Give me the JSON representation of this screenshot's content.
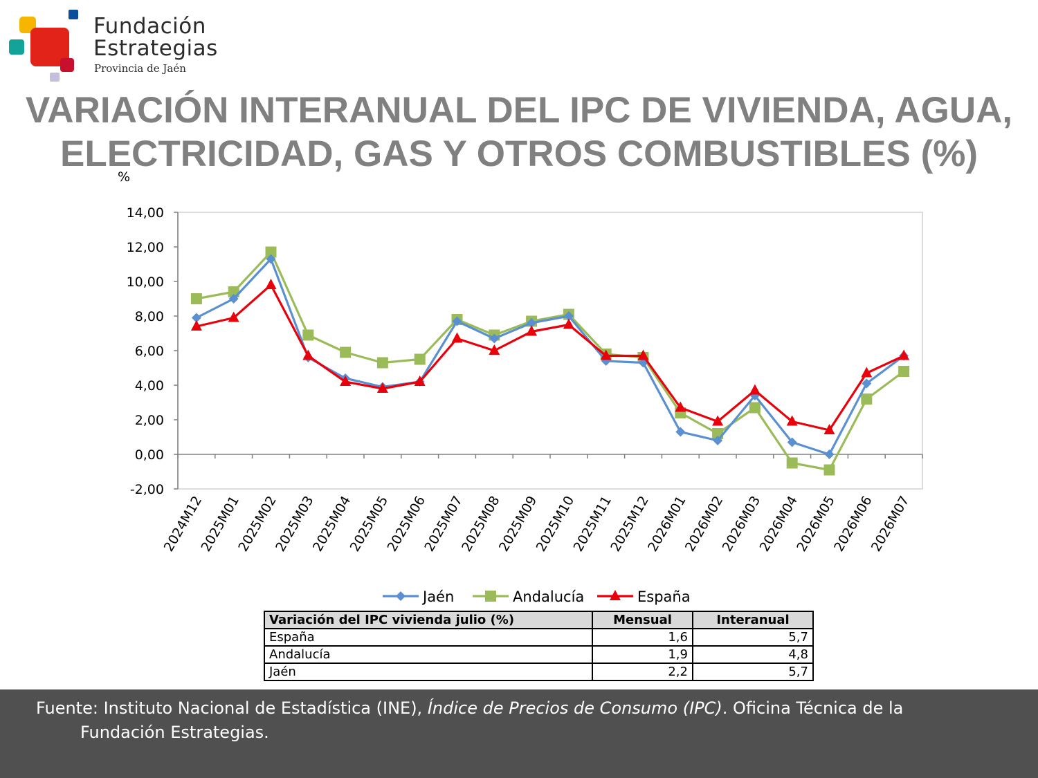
{
  "logo": {
    "line1": "Fundación",
    "line2": "Estrategias",
    "line3": "Provincia de Jaén"
  },
  "title": {
    "line1": "VARIACIÓN INTERANUAL DEL IPC DE VIVIENDA, AGUA,",
    "line2": "ELECTRICIDAD, GAS Y OTROS COMBUSTIBLES (%)"
  },
  "colors": {
    "jaen": "#5a8fd2",
    "andalucia": "#9bbb59",
    "espana": "#e8000b",
    "axis": "#808080",
    "footer_bg": "#505050"
  },
  "chart_data": {
    "type": "line",
    "ylabel": "%",
    "ylim": [
      -2,
      14
    ],
    "yticks": [
      "14,00",
      "12,00",
      "10,00",
      "8,00",
      "6,00",
      "4,00",
      "2,00",
      "0,00",
      "-2,00"
    ],
    "grid": false,
    "legend_position": "bottom",
    "categories": [
      "2024M12",
      "2025M01",
      "2025M02",
      "2025M03",
      "2025M04",
      "2025M05",
      "2025M06",
      "2025M07",
      "2025M08",
      "2025M09",
      "2025M10",
      "2025M11",
      "2025M12",
      "2026M01",
      "2026M02",
      "2026M03",
      "2026M04",
      "2026M05",
      "2026M06",
      "2026M07"
    ],
    "series": [
      {
        "name": "Jaén",
        "marker": "diamond",
        "values": [
          7.9,
          9.0,
          11.3,
          5.6,
          4.4,
          3.9,
          4.2,
          7.7,
          6.7,
          7.6,
          8.0,
          5.4,
          5.3,
          1.3,
          0.8,
          3.4,
          0.7,
          0.0,
          4.1,
          5.7
        ]
      },
      {
        "name": "Andalucía",
        "marker": "square",
        "values": [
          9.0,
          9.4,
          11.7,
          6.9,
          5.9,
          5.3,
          5.5,
          7.8,
          6.9,
          7.7,
          8.1,
          5.8,
          5.6,
          2.4,
          1.2,
          2.7,
          -0.5,
          -0.9,
          3.2,
          4.8
        ]
      },
      {
        "name": "España",
        "marker": "triangle",
        "values": [
          7.4,
          7.9,
          9.8,
          5.7,
          4.2,
          3.8,
          4.2,
          6.7,
          6.0,
          7.1,
          7.5,
          5.7,
          5.7,
          2.7,
          1.9,
          3.7,
          1.9,
          1.4,
          4.7,
          5.7
        ]
      }
    ]
  },
  "table": {
    "headers": [
      "Variación del IPC vivienda julio (%)",
      "Mensual",
      "Interanual"
    ],
    "rows": [
      {
        "label": "España",
        "mensual": "1,6",
        "interanual": "5,7"
      },
      {
        "label": "Andalucía",
        "mensual": "1,9",
        "interanual": "4,8"
      },
      {
        "label": "Jaén",
        "mensual": "2,2",
        "interanual": "5,7"
      }
    ]
  },
  "footer": {
    "prefix": "Fuente: Instituto Nacional de Estadística (INE), ",
    "italic": "Índice de Precios de Consumo (IPC)",
    "suffix_line1": ". Oficina Técnica de la",
    "line2": "Fundación Estrategias."
  }
}
